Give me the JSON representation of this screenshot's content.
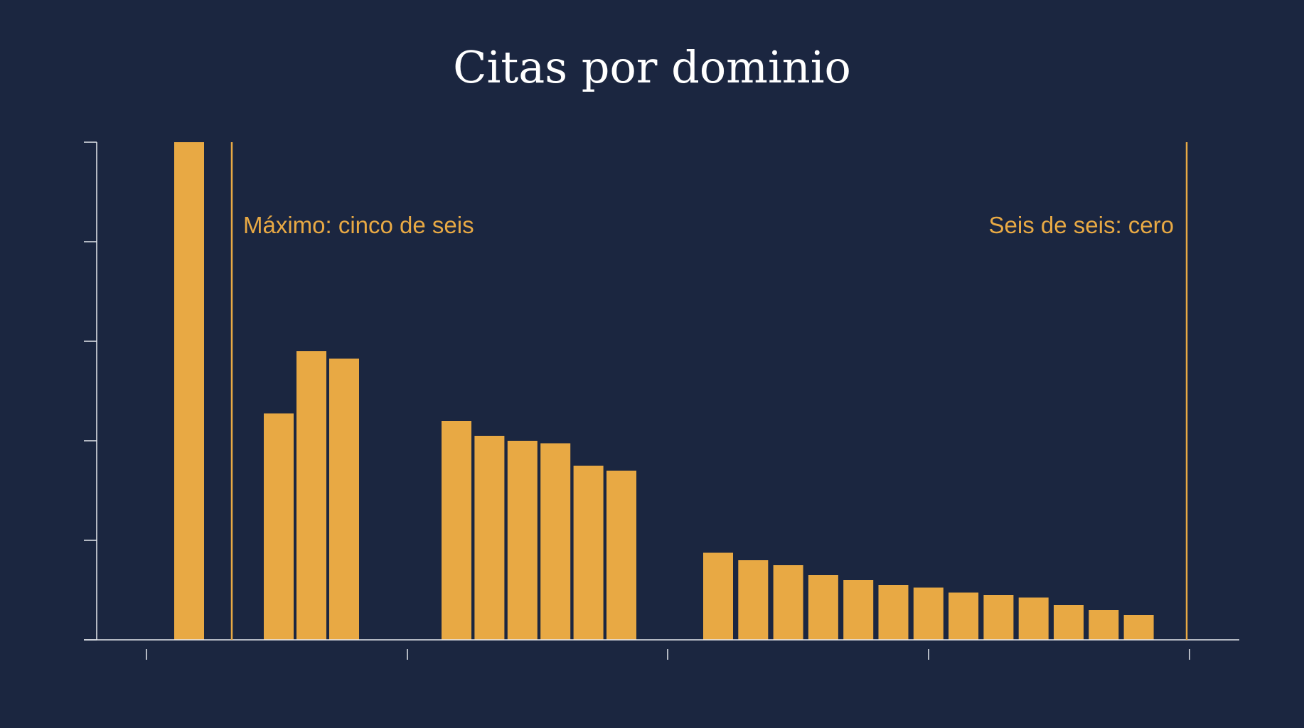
{
  "title": "Citas por dominio",
  "colors": {
    "background": "#1b2640",
    "bar": "#e8a944",
    "axis": "#e6e8ee",
    "title": "#ffffff"
  },
  "chart_data": {
    "type": "bar",
    "title": "Citas por dominio",
    "xlabel": "",
    "ylabel": "",
    "grid": false,
    "groups": [
      {
        "values": [
          100
        ]
      },
      {
        "values": [
          45.5,
          58,
          56.5
        ]
      },
      {
        "values": [
          44,
          41,
          40,
          39.5,
          35,
          34
        ]
      },
      {
        "values": [
          17.5,
          16,
          15,
          13,
          12,
          11,
          10.5,
          9.5,
          9,
          8.5,
          7,
          6,
          5
        ]
      }
    ],
    "ylim": [
      0,
      100
    ],
    "y_ticks": [
      0,
      20,
      40,
      60,
      80,
      100
    ],
    "annotations": [
      {
        "label": "Máximo: cinco de seis",
        "position": "after first bar"
      },
      {
        "label": "Seis de seis: cero",
        "position": "right end"
      }
    ]
  }
}
